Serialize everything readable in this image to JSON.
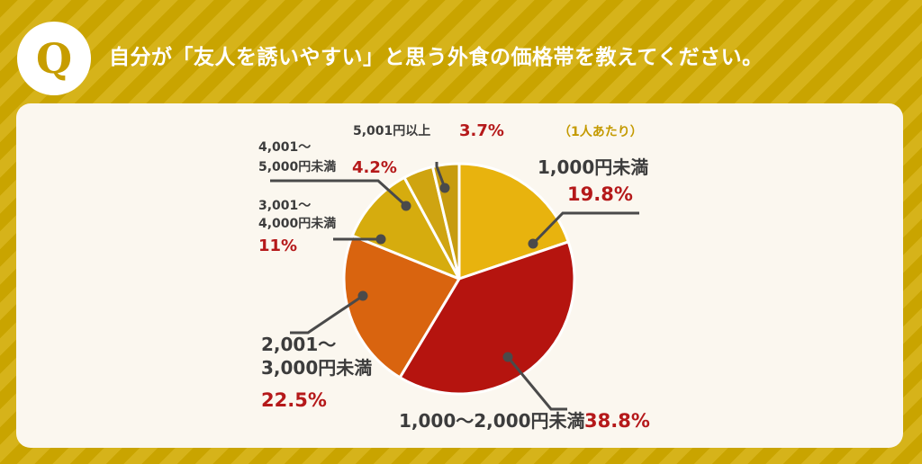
{
  "header": {
    "badge": "Q",
    "title": "自分が「友人を誘いやすい」と思う外食の価格帯を教えてください。"
  },
  "chart_data": {
    "type": "pie",
    "note": "（1人あたり）",
    "slices": [
      {
        "label": "1,000円未満",
        "label_lines": [
          "1,000円未満"
        ],
        "pct_text": "19.8%",
        "value": 19.8,
        "color": "#e8b30e"
      },
      {
        "label": "1,000〜2,000円未満",
        "label_lines": [
          "1,000〜2,000円未満"
        ],
        "pct_text": "38.8%",
        "value": 38.8,
        "color": "#b5140f"
      },
      {
        "label": "2,001〜3,000円未満",
        "label_lines": [
          "2,001〜",
          "3,000円未満"
        ],
        "pct_text": "22.5%",
        "value": 22.5,
        "color": "#d9640f"
      },
      {
        "label": "3,001〜4,000円未満",
        "label_lines": [
          "3,001〜",
          "4,000円未満"
        ],
        "pct_text": "11%",
        "value": 11,
        "color": "#d6ac0e"
      },
      {
        "label": "4,001〜5,000円未満",
        "label_lines": [
          "4,001〜",
          "5,000円未満"
        ],
        "pct_text": "4.2%",
        "value": 4.2,
        "color": "#cfa411"
      },
      {
        "label": "5,001円以上",
        "label_lines": [
          "5,001円以上"
        ],
        "pct_text": "3.7%",
        "value": 3.7,
        "color": "#c79c10"
      }
    ]
  }
}
